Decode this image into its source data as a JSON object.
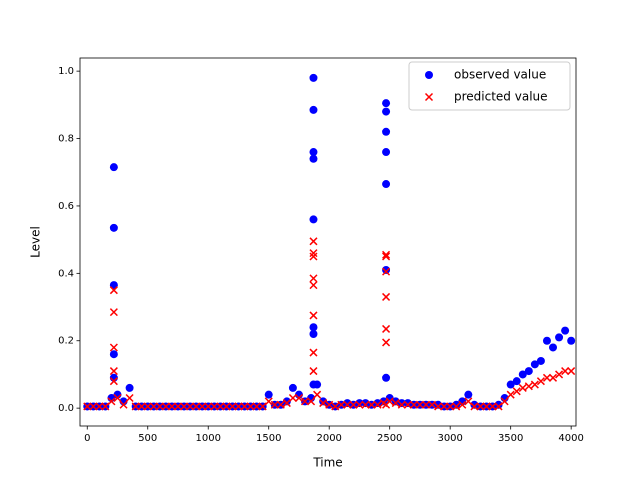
{
  "chart_data": {
    "type": "scatter",
    "xlabel": "Time",
    "ylabel": "Level",
    "xlim": [
      -60,
      4040
    ],
    "ylim": [
      -0.053,
      1.039
    ],
    "xticks": [
      0,
      500,
      1000,
      1500,
      2000,
      2500,
      3000,
      3500,
      4000
    ],
    "yticks": [
      {
        "value": 0,
        "label": "0.0"
      },
      0.2,
      0.4,
      0.6,
      0.8,
      {
        "value": 1,
        "label": "1.0"
      }
    ],
    "legend": "upper right",
    "x": [
      0,
      50,
      100,
      150,
      200,
      250,
      300,
      350,
      400,
      450,
      500,
      550,
      600,
      650,
      700,
      750,
      800,
      850,
      900,
      950,
      1000,
      1050,
      1100,
      1150,
      1200,
      1250,
      1300,
      1350,
      1400,
      1450,
      1500,
      1550,
      1600,
      1650,
      1700,
      1750,
      1800,
      1850,
      1900,
      1950,
      2000,
      2050,
      2100,
      2150,
      2200,
      2250,
      2300,
      2350,
      2400,
      2450,
      2500,
      2550,
      2600,
      2650,
      2700,
      2750,
      2800,
      2850,
      2900,
      2950,
      3000,
      3050,
      3100,
      3150,
      3200,
      3250,
      3300,
      3350,
      3400,
      3450,
      3500,
      3550,
      3600,
      3650,
      3700,
      3750,
      3800,
      3850,
      3900,
      3950,
      4000,
      220,
      220,
      220,
      220,
      220,
      1870,
      1870,
      1870,
      1870,
      1870,
      1870,
      1870,
      1870,
      2470,
      2470,
      2470,
      2470,
      2470,
      2470,
      2470
    ],
    "series": [
      {
        "name": "observed value",
        "color": "#0000ff",
        "marker": "o",
        "values": [
          0.005,
          0.005,
          0.005,
          0.005,
          0.03,
          0.04,
          0.02,
          0.06,
          0.005,
          0.005,
          0.005,
          0.005,
          0.005,
          0.005,
          0.005,
          0.005,
          0.005,
          0.005,
          0.005,
          0.005,
          0.005,
          0.005,
          0.005,
          0.005,
          0.005,
          0.005,
          0.005,
          0.005,
          0.005,
          0.005,
          0.04,
          0.01,
          0.01,
          0.02,
          0.06,
          0.04,
          0.02,
          0.03,
          0.07,
          0.02,
          0.01,
          0.005,
          0.01,
          0.015,
          0.01,
          0.015,
          0.015,
          0.01,
          0.015,
          0.02,
          0.03,
          0.02,
          0.015,
          0.015,
          0.01,
          0.01,
          0.01,
          0.01,
          0.01,
          0.005,
          0.005,
          0.01,
          0.02,
          0.04,
          0.01,
          0.005,
          0.005,
          0.005,
          0.01,
          0.03,
          0.07,
          0.08,
          0.1,
          0.11,
          0.13,
          0.14,
          0.2,
          0.18,
          0.21,
          0.23,
          0.2,
          0.715,
          0.535,
          0.365,
          0.16,
          0.09,
          0.98,
          0.885,
          0.76,
          0.74,
          0.56,
          0.24,
          0.22,
          0.07,
          0.905,
          0.88,
          0.82,
          0.76,
          0.665,
          0.41,
          0.09
        ]
      },
      {
        "name": "predicted value",
        "color": "#ff0000",
        "marker": "x",
        "values": [
          0.005,
          0.005,
          0.005,
          0.005,
          0.02,
          0.03,
          0.01,
          0.03,
          0.005,
          0.005,
          0.005,
          0.005,
          0.005,
          0.005,
          0.005,
          0.005,
          0.005,
          0.005,
          0.005,
          0.005,
          0.005,
          0.005,
          0.005,
          0.005,
          0.005,
          0.005,
          0.005,
          0.005,
          0.005,
          0.005,
          0.02,
          0.01,
          0.01,
          0.015,
          0.03,
          0.03,
          0.02,
          0.02,
          0.04,
          0.015,
          0.01,
          0.005,
          0.01,
          0.01,
          0.01,
          0.01,
          0.01,
          0.01,
          0.01,
          0.015,
          0.02,
          0.015,
          0.01,
          0.01,
          0.01,
          0.01,
          0.01,
          0.01,
          0.005,
          0.005,
          0.005,
          0.005,
          0.01,
          0.02,
          0.005,
          0.005,
          0.005,
          0.005,
          0.005,
          0.02,
          0.04,
          0.05,
          0.06,
          0.065,
          0.07,
          0.08,
          0.09,
          0.09,
          0.1,
          0.11,
          0.11,
          0.35,
          0.285,
          0.18,
          0.11,
          0.08,
          0.495,
          0.46,
          0.45,
          0.385,
          0.365,
          0.275,
          0.165,
          0.11,
          0.455,
          0.45,
          0.33,
          0.235,
          0.195,
          0.405,
          0.01
        ]
      }
    ]
  }
}
